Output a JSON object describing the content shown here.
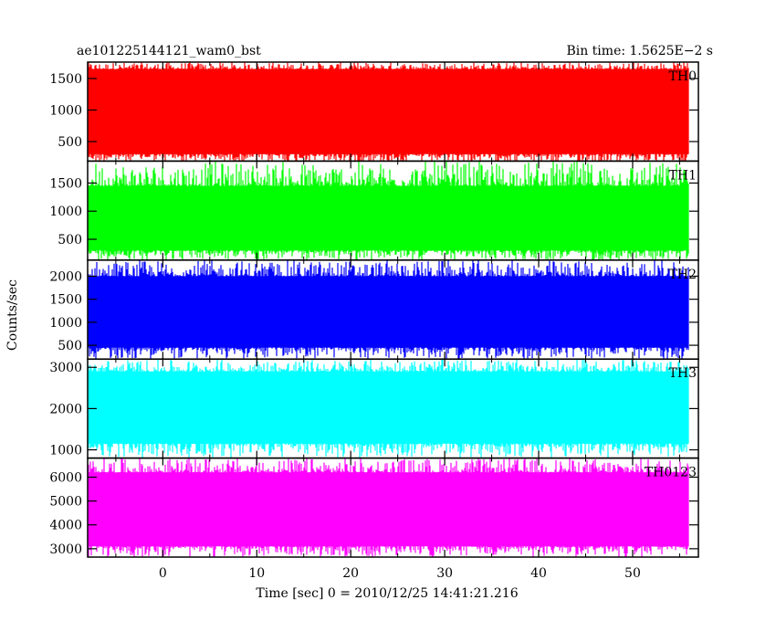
{
  "chart_data": {
    "type": "line",
    "title_left": "ae101225144121_wam0_bst",
    "title_right": "Bin time: 1.5625E−2 s",
    "xlabel": "Time [sec] 0 = 2010/12/25 14:41:21.216",
    "ylabel": "Counts/sec",
    "xlim": [
      -8,
      57
    ],
    "x_data_range": [
      -8,
      56
    ],
    "x_ticks": [
      0,
      10,
      20,
      30,
      40,
      50
    ],
    "x_tick_labels": [
      "0",
      "10",
      "20",
      "30",
      "40",
      "50"
    ],
    "grid": false,
    "panels": [
      {
        "name": "TH0",
        "color": "#ff0000",
        "ylim": [
          190,
          1760
        ],
        "y_ticks": [
          500,
          1000,
          1500
        ],
        "y_tick_labels": [
          "500",
          "1000",
          "1500"
        ],
        "typical_band": [
          300,
          1650
        ],
        "range": [
          150,
          1760
        ]
      },
      {
        "name": "TH1",
        "color": "#00ff00",
        "ylim": [
          130,
          1890
        ],
        "y_ticks": [
          500,
          1000,
          1500
        ],
        "y_tick_labels": [
          "500",
          "1000",
          "1500"
        ],
        "typical_band": [
          300,
          1450
        ],
        "range": [
          130,
          1890
        ]
      },
      {
        "name": "TH2",
        "color": "#0000ff",
        "ylim": [
          200,
          2350
        ],
        "y_ticks": [
          500,
          1000,
          1500,
          2000
        ],
        "y_tick_labels": [
          "500",
          "1000",
          "1500",
          "2000"
        ],
        "typical_band": [
          450,
          2000
        ],
        "range": [
          200,
          2350
        ]
      },
      {
        "name": "TH3",
        "color": "#00ffff",
        "ylim": [
          800,
          3200
        ],
        "y_ticks": [
          1000,
          2000,
          3000
        ],
        "y_tick_labels": [
          "1000",
          "2000",
          "3000"
        ],
        "typical_band": [
          1150,
          2900
        ],
        "range": [
          800,
          3200
        ]
      },
      {
        "name": "TH0123",
        "color": "#ff00ff",
        "ylim": [
          2650,
          6800
        ],
        "y_ticks": [
          3000,
          4000,
          5000,
          6000
        ],
        "y_tick_labels": [
          "3000",
          "4000",
          "5000",
          "6000"
        ],
        "typical_band": [
          3100,
          6200
        ],
        "range": [
          2650,
          6800
        ]
      }
    ]
  }
}
